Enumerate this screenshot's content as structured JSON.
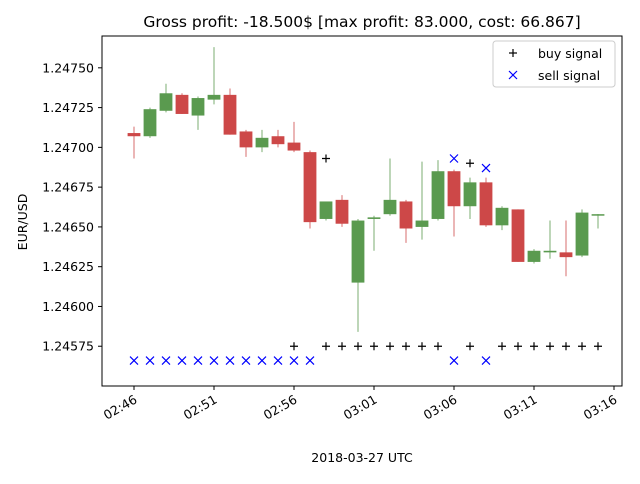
{
  "chart_data": {
    "type": "candlestick",
    "title": "Gross profit: -18.500$ [max profit: 83.000, cost: 66.867]",
    "xlabel": "2018-03-27 UTC",
    "ylabel": "EUR/USD",
    "ylim": [
      1.2455,
      1.2477
    ],
    "xlim": [
      -2.0,
      30.5
    ],
    "y_ticks": [
      1.24575,
      1.246,
      1.24625,
      1.2465,
      1.24675,
      1.247,
      1.24725,
      1.2475
    ],
    "y_tick_labels": [
      "1.24575",
      "1.24600",
      "1.24625",
      "1.24650",
      "1.24675",
      "1.24700",
      "1.24725",
      "1.24750"
    ],
    "x_ticks": [
      0,
      5,
      10,
      15,
      20,
      25,
      30
    ],
    "x_tick_labels": [
      "02:46",
      "02:51",
      "02:56",
      "03:01",
      "03:06",
      "03:11",
      "03:16"
    ],
    "legend": {
      "position": "top-right",
      "entries": [
        {
          "label": "buy signal",
          "marker": "+",
          "color": "#000000"
        },
        {
          "label": "sell signal",
          "marker": "x",
          "color": "#0000ff"
        }
      ]
    },
    "colors": {
      "up": "#5a9a4f",
      "down": "#cd4848",
      "buy": "#000000",
      "sell": "#0000ff"
    },
    "candles": [
      {
        "t": "02:46",
        "open": 1.24709,
        "high": 1.24713,
        "low": 1.24693,
        "close": 1.24707
      },
      {
        "t": "02:47",
        "open": 1.24707,
        "high": 1.24725,
        "low": 1.24706,
        "close": 1.24724
      },
      {
        "t": "02:48",
        "open": 1.24723,
        "high": 1.2474,
        "low": 1.24722,
        "close": 1.24734
      },
      {
        "t": "02:49",
        "open": 1.24733,
        "high": 1.24734,
        "low": 1.24721,
        "close": 1.24721
      },
      {
        "t": "02:50",
        "open": 1.2472,
        "high": 1.24732,
        "low": 1.24711,
        "close": 1.24731
      },
      {
        "t": "02:51",
        "open": 1.2473,
        "high": 1.24763,
        "low": 1.24727,
        "close": 1.24733
      },
      {
        "t": "02:52",
        "open": 1.24733,
        "high": 1.24737,
        "low": 1.24708,
        "close": 1.24708
      },
      {
        "t": "02:53",
        "open": 1.2471,
        "high": 1.24711,
        "low": 1.24694,
        "close": 1.247
      },
      {
        "t": "02:54",
        "open": 1.247,
        "high": 1.24711,
        "low": 1.24697,
        "close": 1.24706
      },
      {
        "t": "02:55",
        "open": 1.24707,
        "high": 1.24711,
        "low": 1.247,
        "close": 1.24702
      },
      {
        "t": "02:56",
        "open": 1.24703,
        "high": 1.24716,
        "low": 1.24697,
        "close": 1.24698
      },
      {
        "t": "02:57",
        "open": 1.24697,
        "high": 1.24698,
        "low": 1.24649,
        "close": 1.24653
      },
      {
        "t": "02:58",
        "open": 1.24655,
        "high": 1.24666,
        "low": 1.24654,
        "close": 1.24666
      },
      {
        "t": "02:59",
        "open": 1.24667,
        "high": 1.2467,
        "low": 1.2465,
        "close": 1.24652
      },
      {
        "t": "03:00",
        "open": 1.24615,
        "high": 1.24655,
        "low": 1.24584,
        "close": 1.24654
      },
      {
        "t": "03:01",
        "open": 1.24655,
        "high": 1.24657,
        "low": 1.24635,
        "close": 1.24656
      },
      {
        "t": "03:02",
        "open": 1.24658,
        "high": 1.24693,
        "low": 1.24657,
        "close": 1.24667
      },
      {
        "t": "03:03",
        "open": 1.24666,
        "high": 1.24667,
        "low": 1.2464,
        "close": 1.24649
      },
      {
        "t": "03:04",
        "open": 1.2465,
        "high": 1.24691,
        "low": 1.24642,
        "close": 1.24654
      },
      {
        "t": "03:05",
        "open": 1.24655,
        "high": 1.24692,
        "low": 1.24654,
        "close": 1.24685
      },
      {
        "t": "03:06",
        "open": 1.24685,
        "high": 1.24686,
        "low": 1.24644,
        "close": 1.24663
      },
      {
        "t": "03:07",
        "open": 1.24663,
        "high": 1.24681,
        "low": 1.24655,
        "close": 1.24678
      },
      {
        "t": "03:08",
        "open": 1.24678,
        "high": 1.24681,
        "low": 1.2465,
        "close": 1.24651
      },
      {
        "t": "03:09",
        "open": 1.24651,
        "high": 1.24663,
        "low": 1.24648,
        "close": 1.24662
      },
      {
        "t": "03:10",
        "open": 1.24661,
        "high": 1.24661,
        "low": 1.24628,
        "close": 1.24628
      },
      {
        "t": "03:11",
        "open": 1.24628,
        "high": 1.24636,
        "low": 1.24627,
        "close": 1.24635
      },
      {
        "t": "03:12",
        "open": 1.24634,
        "high": 1.24654,
        "low": 1.2463,
        "close": 1.24635
      },
      {
        "t": "03:13",
        "open": 1.24634,
        "high": 1.24654,
        "low": 1.24619,
        "close": 1.24631
      },
      {
        "t": "03:14",
        "open": 1.24632,
        "high": 1.24661,
        "low": 1.24631,
        "close": 1.24659
      },
      {
        "t": "03:15",
        "open": 1.24658,
        "high": 1.24658,
        "low": 1.24649,
        "close": 1.24658
      }
    ],
    "buy_signals": [
      {
        "t": "02:56",
        "price": 1.24575
      },
      {
        "t": "02:58",
        "price": 1.24693
      },
      {
        "t": "02:58",
        "price": 1.24575
      },
      {
        "t": "02:59",
        "price": 1.24575
      },
      {
        "t": "03:00",
        "price": 1.24575
      },
      {
        "t": "03:01",
        "price": 1.24575
      },
      {
        "t": "03:02",
        "price": 1.24575
      },
      {
        "t": "03:03",
        "price": 1.24575
      },
      {
        "t": "03:04",
        "price": 1.24575
      },
      {
        "t": "03:05",
        "price": 1.24575
      },
      {
        "t": "03:07",
        "price": 1.2469
      },
      {
        "t": "03:07",
        "price": 1.24575
      },
      {
        "t": "03:09",
        "price": 1.24575
      },
      {
        "t": "03:10",
        "price": 1.24575
      },
      {
        "t": "03:11",
        "price": 1.24575
      },
      {
        "t": "03:12",
        "price": 1.24575
      },
      {
        "t": "03:13",
        "price": 1.24575
      },
      {
        "t": "03:14",
        "price": 1.24575
      },
      {
        "t": "03:15",
        "price": 1.24575
      }
    ],
    "sell_signals": [
      {
        "t": "02:46",
        "price": 1.24566
      },
      {
        "t": "02:47",
        "price": 1.24566
      },
      {
        "t": "02:48",
        "price": 1.24566
      },
      {
        "t": "02:49",
        "price": 1.24566
      },
      {
        "t": "02:50",
        "price": 1.24566
      },
      {
        "t": "02:51",
        "price": 1.24566
      },
      {
        "t": "02:52",
        "price": 1.24566
      },
      {
        "t": "02:53",
        "price": 1.24566
      },
      {
        "t": "02:54",
        "price": 1.24566
      },
      {
        "t": "02:55",
        "price": 1.24566
      },
      {
        "t": "02:56",
        "price": 1.24566
      },
      {
        "t": "02:57",
        "price": 1.24566
      },
      {
        "t": "03:06",
        "price": 1.24693
      },
      {
        "t": "03:06",
        "price": 1.24566
      },
      {
        "t": "03:08",
        "price": 1.24687
      },
      {
        "t": "03:08",
        "price": 1.24566
      }
    ]
  }
}
